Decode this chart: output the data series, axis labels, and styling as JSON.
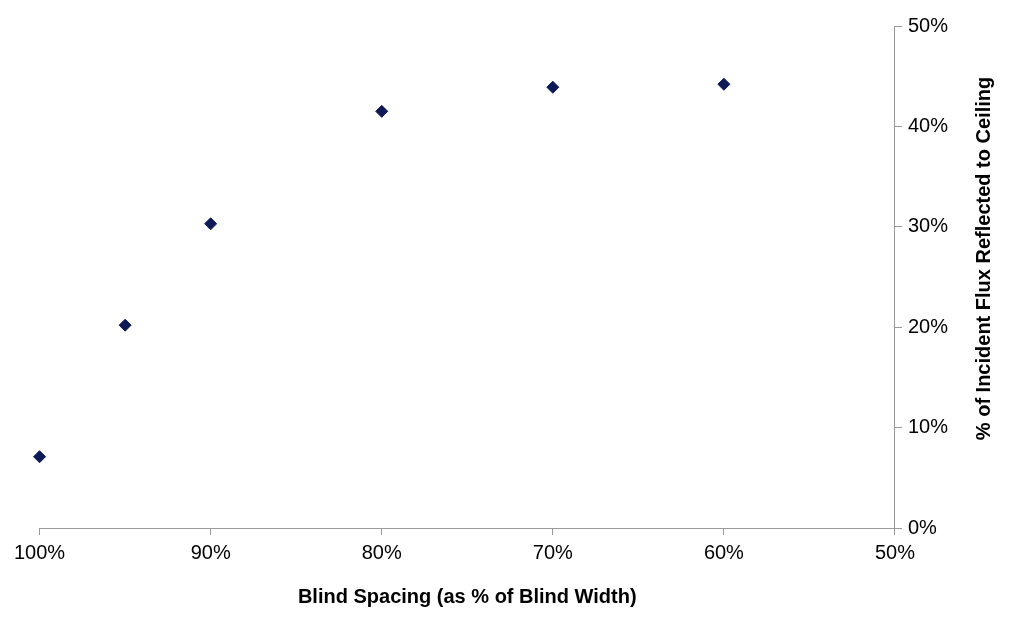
{
  "chart_data": {
    "type": "scatter",
    "xlabel": "Blind Spacing (as % of Blind Width)",
    "ylabel": "% of Incident Flux Reflected to Ceiling",
    "x": [
      100,
      95,
      90,
      80,
      70,
      60
    ],
    "series": [
      {
        "color": "#0d1a57",
        "values": [
          7.1,
          20.2,
          30.3,
          41.5,
          43.9,
          44.2
        ]
      }
    ],
    "xlim": [
      100,
      50
    ],
    "xticks": [
      {
        "value": 100,
        "label": "100%"
      },
      {
        "value": 90,
        "label": "90%"
      },
      {
        "value": 80,
        "label": "80%"
      },
      {
        "value": 70,
        "label": "70%"
      },
      {
        "value": 60,
        "label": "60%"
      },
      {
        "value": 50,
        "label": "50%"
      }
    ],
    "ylim": [
      0,
      50
    ],
    "yticks": [
      {
        "value": 0,
        "label": "0%"
      },
      {
        "value": 10,
        "label": "10%"
      },
      {
        "value": 20,
        "label": "20%"
      },
      {
        "value": 30,
        "label": "30%"
      },
      {
        "value": 40,
        "label": "40%"
      },
      {
        "value": 50,
        "label": "50%"
      }
    ],
    "grid": false,
    "legend": false,
    "marker": "diamond"
  }
}
